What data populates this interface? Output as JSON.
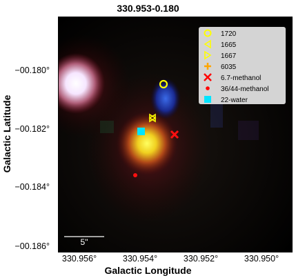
{
  "title": "330.953-0.180",
  "xlabel": "Galactic Longitude",
  "ylabel": "Galactic Latitude",
  "xticks": [
    "330.956°",
    "330.954°",
    "330.952°",
    "330.950°"
  ],
  "yticks": [
    "−00.180°",
    "−00.182°",
    "−00.184°",
    "−00.186°"
  ],
  "scalebar": "5\"",
  "legend": [
    {
      "label": "1720",
      "symbol": "circle",
      "color": "#ffff00"
    },
    {
      "label": "1665",
      "symbol": "tri-left",
      "color": "#ffff00"
    },
    {
      "label": "1667",
      "symbol": "tri-right",
      "color": "#ffff00"
    },
    {
      "label": "6035",
      "symbol": "plus",
      "color": "#ffa500"
    },
    {
      "label": "6.7-methanol",
      "symbol": "x",
      "color": "#ff0000"
    },
    {
      "label": "36/44-methanol",
      "symbol": "dot",
      "color": "#ff0000"
    },
    {
      "label": "22-water",
      "symbol": "square",
      "color": "#00ffff"
    }
  ]
}
